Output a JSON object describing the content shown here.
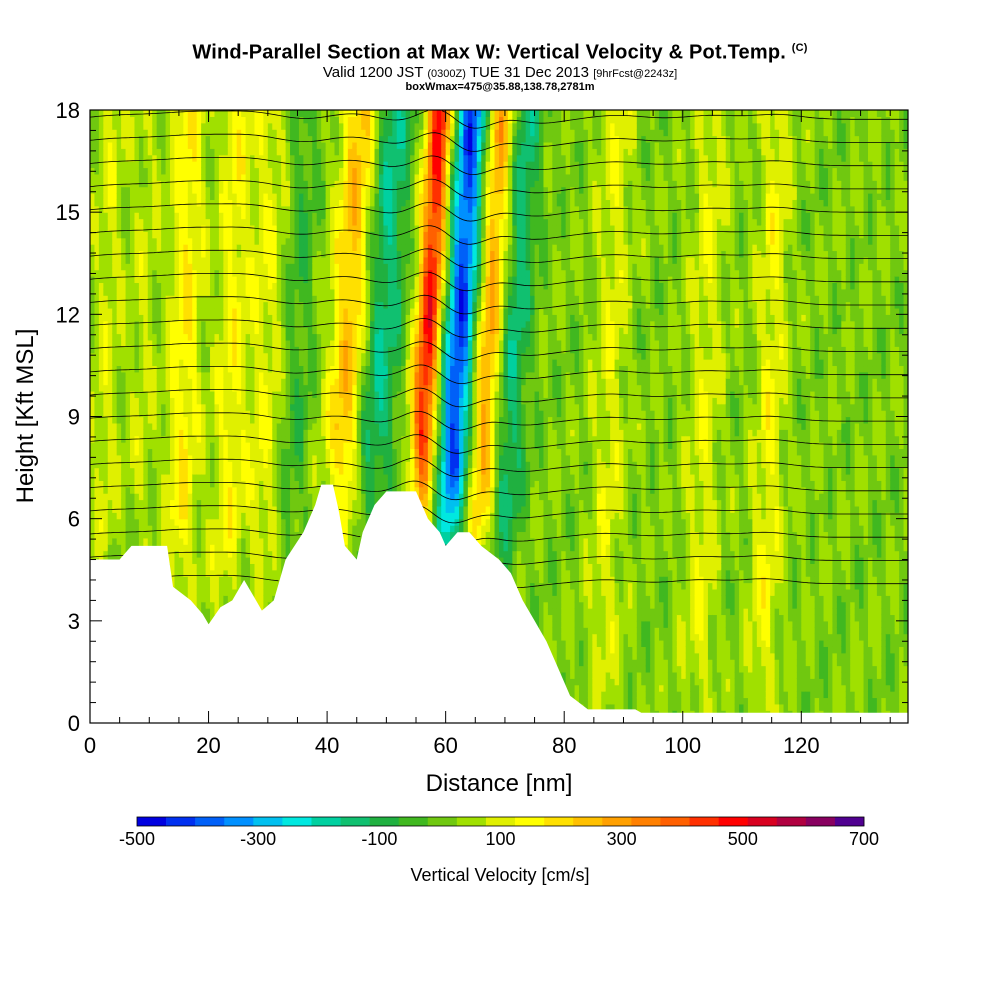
{
  "header": {
    "title": "Wind-Parallel Section at Max W: Vertical Velocity & Pot.Temp.",
    "title_mark": "(C)",
    "valid_a": "Valid 1200 JST",
    "valid_b": "(0300Z)",
    "valid_c": "TUE 31 Dec 2013",
    "valid_d": "[9hrFcst@2243z]",
    "box": "boxWmax=475@35.88,138.78,2781m"
  },
  "chart_data": {
    "type": "heatmap",
    "title": "Wind-Parallel Section at Max W: Vertical Velocity & Pot.Temp.",
    "xlabel": "Distance [nm]",
    "ylabel": "Height [Kft MSL]",
    "xlim": [
      0,
      138
    ],
    "ylim": [
      0,
      18
    ],
    "x_ticks": [
      0,
      20,
      40,
      60,
      80,
      100,
      120
    ],
    "y_ticks": [
      0,
      3,
      6,
      9,
      12,
      15,
      18
    ],
    "colorbar": {
      "label": "Vertical Velocity [cm/s]",
      "ticks": [
        -500,
        -300,
        -100,
        100,
        300,
        500,
        700
      ],
      "min": -500,
      "max": 700,
      "step": 50,
      "colors": [
        "#0000e0",
        "#0030f0",
        "#0060f8",
        "#0090ff",
        "#00c0f0",
        "#00e8e0",
        "#00d0a0",
        "#10c070",
        "#20b040",
        "#40b820",
        "#70c810",
        "#a0e000",
        "#e0f000",
        "#ffff00",
        "#ffe000",
        "#ffc000",
        "#ffa000",
        "#ff8000",
        "#ff6000",
        "#ff3000",
        "#ff0000",
        "#d80020",
        "#b00040",
        "#880060",
        "#500090"
      ]
    },
    "terrain": [
      [
        0,
        4.8
      ],
      [
        5,
        4.8
      ],
      [
        7,
        5.2
      ],
      [
        13,
        5.2
      ],
      [
        14,
        4.0
      ],
      [
        17,
        3.6
      ],
      [
        19,
        3.2
      ],
      [
        20,
        2.9
      ],
      [
        22,
        3.4
      ],
      [
        24,
        3.6
      ],
      [
        26,
        4.2
      ],
      [
        28,
        3.6
      ],
      [
        29,
        3.3
      ],
      [
        31,
        3.6
      ],
      [
        33,
        4.8
      ],
      [
        36,
        5.6
      ],
      [
        38,
        6.4
      ],
      [
        39,
        7.0
      ],
      [
        41,
        7.0
      ],
      [
        42,
        6.2
      ],
      [
        43,
        5.2
      ],
      [
        45,
        4.8
      ],
      [
        46,
        5.6
      ],
      [
        48,
        6.4
      ],
      [
        50,
        6.8
      ],
      [
        55,
        6.8
      ],
      [
        57,
        6.0
      ],
      [
        59,
        5.6
      ],
      [
        60,
        5.2
      ],
      [
        62,
        5.6
      ],
      [
        64,
        5.6
      ],
      [
        66,
        5.2
      ],
      [
        69,
        4.8
      ],
      [
        71,
        4.4
      ],
      [
        73,
        3.6
      ],
      [
        75,
        3.0
      ],
      [
        77,
        2.4
      ],
      [
        79,
        1.6
      ],
      [
        81,
        0.8
      ],
      [
        84,
        0.4
      ],
      [
        92,
        0.4
      ],
      [
        93,
        0.3
      ],
      [
        138,
        0.3
      ]
    ],
    "vertical_velocity_bands": [
      {
        "x": 4,
        "w": 1.8,
        "value": 80
      },
      {
        "x": 10,
        "w": 1.6,
        "value": 60
      },
      {
        "x": 17,
        "w": 2.0,
        "value": 150
      },
      {
        "x": 25,
        "w": 2.0,
        "value": 120
      },
      {
        "x": 31,
        "w": 2.2,
        "value": 100
      },
      {
        "x": 36,
        "w": 2.0,
        "value": -80
      },
      {
        "x": 46,
        "w": 2.4,
        "value": 250
      },
      {
        "x": 51,
        "w": 2.6,
        "value": -200
      },
      {
        "x": 59.2,
        "w": 1.6,
        "value": 475
      },
      {
        "x": 64.5,
        "w": 2.0,
        "value": -450
      },
      {
        "x": 69.5,
        "w": 1.8,
        "value": 300
      },
      {
        "x": 73.5,
        "w": 2.0,
        "value": -180
      },
      {
        "x": 89,
        "w": 2.0,
        "value": 90
      },
      {
        "x": 105,
        "w": 2.0,
        "value": 90
      },
      {
        "x": 116,
        "w": 1.8,
        "value": 110
      }
    ],
    "potential_temperature_contours": "black isentropes over the vertical velocity field"
  }
}
